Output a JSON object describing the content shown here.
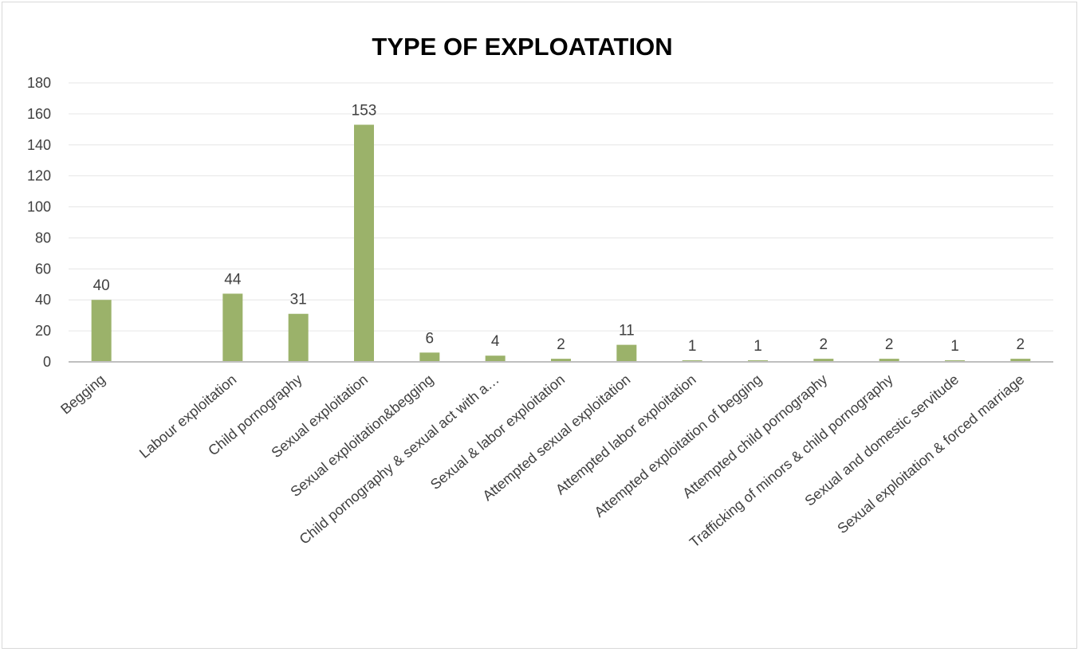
{
  "chart_data": {
    "type": "bar",
    "title": "TYPE OF EXPLOATATION",
    "xlabel": "",
    "ylabel": "",
    "ylim": [
      0,
      180
    ],
    "yticks": [
      0,
      20,
      40,
      60,
      80,
      100,
      120,
      140,
      160,
      180
    ],
    "grid": true,
    "legend": "none",
    "bar_color": "#9bb26a",
    "categories": [
      "Begging",
      "",
      "Labour exploitation",
      "Child pornography",
      "Sexual exploitation",
      "Sexual exploitation&begging",
      "Child pornography & sexual act with a…",
      "Sexual & labor exploitation",
      "Attempted sexual exploitation",
      "Attempted labor exploitation",
      "Attempted exploitation of begging",
      "Attempted child pornography",
      "Trafficking of minors & child pornography",
      "Sexual and domestic servitude",
      "Sexual exploitation & forced marriage"
    ],
    "values": [
      40,
      null,
      44,
      31,
      153,
      6,
      4,
      2,
      11,
      1,
      1,
      2,
      2,
      1,
      2
    ],
    "data_labels": [
      "40",
      "",
      "44",
      "31",
      "153",
      "6",
      "4",
      "2",
      "11",
      "1",
      "1",
      "2",
      "2",
      "1",
      "2"
    ]
  }
}
